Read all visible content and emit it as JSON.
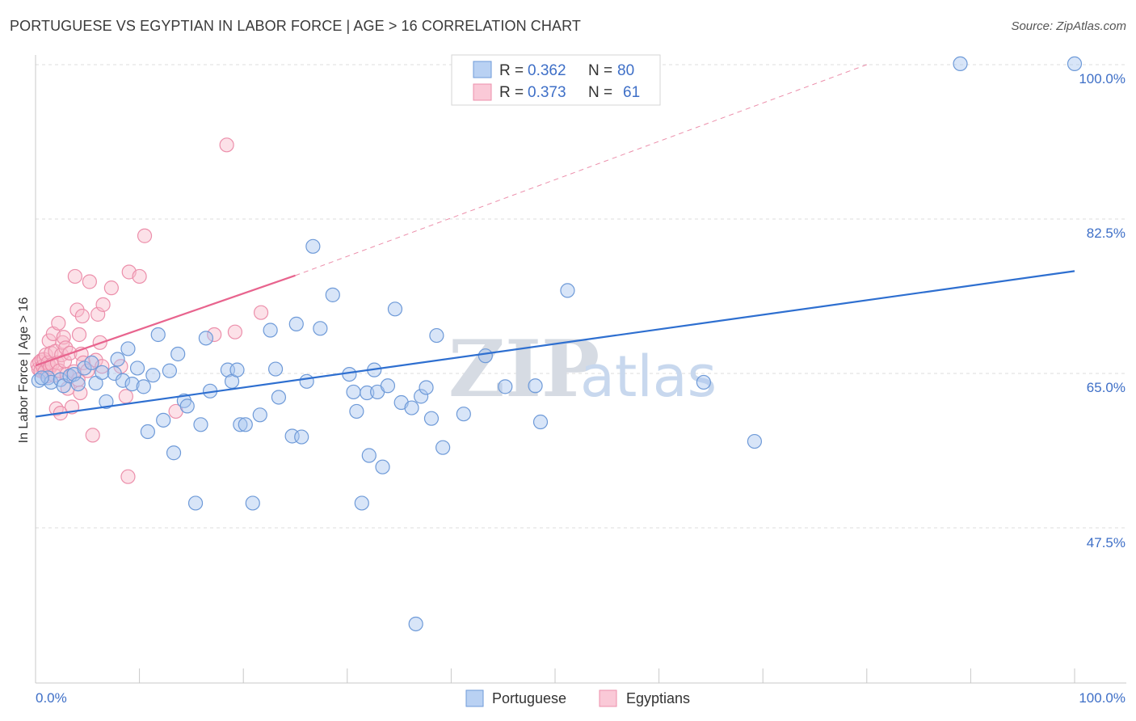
{
  "title": "PORTUGUESE VS EGYPTIAN IN LABOR FORCE | AGE > 16 CORRELATION CHART",
  "source": "Source: ZipAtlas.com",
  "watermark": {
    "zip": "ZIP",
    "atlas": "atlas"
  },
  "colors": {
    "blue": "#3e6fc7",
    "blue_line": "#2e6fd0",
    "blue_fill": "#a8c6f0",
    "pink": "#f48aa8",
    "pink_line": "#e8648e",
    "pink_fill": "#f9bccd"
  },
  "legend": {
    "rows": [
      {
        "r_label": "R = ",
        "r_value": "0.362",
        "n_label": "N = ",
        "n_value": "80"
      },
      {
        "r_label": "R = ",
        "r_value": "0.373",
        "n_label": "N = ",
        "n_value": "61"
      }
    ]
  },
  "bottom_legend": [
    "Portuguese",
    "Egyptians"
  ],
  "chart_data": {
    "type": "scatter",
    "title": "PORTUGUESE VS EGYPTIAN IN LABOR FORCE | AGE > 16 CORRELATION CHART",
    "xlabel": "",
    "ylabel": "In Labor Force | Age > 16",
    "xlim": [
      0,
      100
    ],
    "ylim": [
      30,
      103
    ],
    "x_tick_labels": [
      "0.0%",
      "100.0%"
    ],
    "y_tick_labels": [
      "100.0%",
      "82.5%",
      "65.0%",
      "47.5%"
    ],
    "y_ticks": [
      100,
      82.5,
      65,
      47.5
    ],
    "series": [
      {
        "name": "Portuguese",
        "r": 0.362,
        "n": 80,
        "trend": {
          "x": [
            0,
            100
          ],
          "y": [
            60.1,
            76.6
          ],
          "style": "solid"
        },
        "points": [
          [
            0.3,
            64.2
          ],
          [
            1.2,
            64.5
          ],
          [
            1.5,
            64.0
          ],
          [
            2.4,
            64.3
          ],
          [
            2.7,
            63.6
          ],
          [
            3.3,
            64.7
          ],
          [
            3.7,
            64.9
          ],
          [
            4.1,
            63.8
          ],
          [
            4.7,
            65.6
          ],
          [
            5.4,
            66.2
          ],
          [
            5.8,
            63.9
          ],
          [
            6.4,
            65.1
          ],
          [
            6.8,
            61.8
          ],
          [
            7.6,
            65.0
          ],
          [
            7.9,
            66.6
          ],
          [
            8.4,
            64.2
          ],
          [
            8.9,
            67.8
          ],
          [
            9.3,
            63.8
          ],
          [
            9.8,
            65.6
          ],
          [
            10.4,
            63.5
          ],
          [
            10.8,
            58.4
          ],
          [
            11.3,
            64.8
          ],
          [
            11.8,
            69.4
          ],
          [
            12.3,
            59.7
          ],
          [
            12.9,
            65.3
          ],
          [
            13.3,
            56.0
          ],
          [
            13.7,
            67.2
          ],
          [
            14.3,
            61.9
          ],
          [
            14.6,
            61.3
          ],
          [
            15.4,
            50.3
          ],
          [
            15.9,
            59.2
          ],
          [
            16.4,
            69.0
          ],
          [
            16.8,
            63.0
          ],
          [
            18.5,
            65.4
          ],
          [
            18.9,
            64.1
          ],
          [
            19.4,
            65.4
          ],
          [
            19.7,
            59.2
          ],
          [
            20.2,
            59.2
          ],
          [
            20.9,
            50.3
          ],
          [
            21.6,
            60.3
          ],
          [
            22.6,
            69.9
          ],
          [
            23.1,
            65.5
          ],
          [
            23.4,
            62.3
          ],
          [
            24.7,
            57.9
          ],
          [
            25.1,
            70.6
          ],
          [
            25.6,
            57.8
          ],
          [
            26.1,
            64.1
          ],
          [
            26.7,
            79.4
          ],
          [
            27.4,
            70.1
          ],
          [
            28.6,
            73.9
          ],
          [
            30.2,
            64.9
          ],
          [
            30.6,
            62.9
          ],
          [
            30.9,
            60.7
          ],
          [
            31.4,
            50.3
          ],
          [
            31.9,
            62.8
          ],
          [
            32.1,
            55.7
          ],
          [
            32.6,
            65.4
          ],
          [
            32.9,
            62.9
          ],
          [
            33.4,
            54.4
          ],
          [
            33.9,
            63.6
          ],
          [
            34.6,
            72.3
          ],
          [
            35.2,
            61.7
          ],
          [
            36.2,
            61.1
          ],
          [
            36.6,
            36.6
          ],
          [
            37.1,
            62.4
          ],
          [
            37.6,
            63.4
          ],
          [
            38.1,
            59.9
          ],
          [
            38.6,
            69.3
          ],
          [
            39.2,
            56.6
          ],
          [
            41.2,
            60.4
          ],
          [
            43.3,
            67.0
          ],
          [
            45.2,
            63.5
          ],
          [
            48.1,
            63.6
          ],
          [
            48.6,
            59.5
          ],
          [
            51.2,
            74.4
          ],
          [
            64.3,
            64.0
          ],
          [
            69.2,
            57.3
          ],
          [
            89.0,
            100.1
          ],
          [
            100.0,
            100.1
          ],
          [
            0.6,
            64.5
          ]
        ]
      },
      {
        "name": "Egyptians",
        "r": 0.373,
        "n": 61,
        "trend": {
          "x": [
            0,
            25
          ],
          "y": [
            65.9,
            76.1
          ],
          "style": "solid",
          "extended_to": [
            80,
            100
          ],
          "extended_style": "dashed"
        },
        "points": [
          [
            0.2,
            66.0
          ],
          [
            0.3,
            65.5
          ],
          [
            0.4,
            66.3
          ],
          [
            0.5,
            65.3
          ],
          [
            0.6,
            66.5
          ],
          [
            0.7,
            65.8
          ],
          [
            0.8,
            66.6
          ],
          [
            0.9,
            65.2
          ],
          [
            1.0,
            67.1
          ],
          [
            1.1,
            64.7
          ],
          [
            1.2,
            66.2
          ],
          [
            1.3,
            68.7
          ],
          [
            1.4,
            65.7
          ],
          [
            1.5,
            67.3
          ],
          [
            1.6,
            66.0
          ],
          [
            1.7,
            69.5
          ],
          [
            1.8,
            64.8
          ],
          [
            1.9,
            67.5
          ],
          [
            2.0,
            61.0
          ],
          [
            2.1,
            66.2
          ],
          [
            2.2,
            70.7
          ],
          [
            2.3,
            65.3
          ],
          [
            2.4,
            60.5
          ],
          [
            2.5,
            67.1
          ],
          [
            2.6,
            68.5
          ],
          [
            2.7,
            69.1
          ],
          [
            2.8,
            66.4
          ],
          [
            2.9,
            67.9
          ],
          [
            3.0,
            64.9
          ],
          [
            3.1,
            63.3
          ],
          [
            3.3,
            67.3
          ],
          [
            3.5,
            61.2
          ],
          [
            3.7,
            65.2
          ],
          [
            3.8,
            76.0
          ],
          [
            4.0,
            72.2
          ],
          [
            4.1,
            64.3
          ],
          [
            4.2,
            69.4
          ],
          [
            4.3,
            62.8
          ],
          [
            4.4,
            67.2
          ],
          [
            4.5,
            71.5
          ],
          [
            4.6,
            66.2
          ],
          [
            5.0,
            65.3
          ],
          [
            5.2,
            75.4
          ],
          [
            5.5,
            58.0
          ],
          [
            5.8,
            66.5
          ],
          [
            6.0,
            71.7
          ],
          [
            6.2,
            68.5
          ],
          [
            6.4,
            65.8
          ],
          [
            6.5,
            72.8
          ],
          [
            7.3,
            74.7
          ],
          [
            8.2,
            65.8
          ],
          [
            8.7,
            62.4
          ],
          [
            8.9,
            53.3
          ],
          [
            9.0,
            76.5
          ],
          [
            10.0,
            76.0
          ],
          [
            10.5,
            80.6
          ],
          [
            13.5,
            60.7
          ],
          [
            17.2,
            69.4
          ],
          [
            19.2,
            69.7
          ],
          [
            21.7,
            71.9
          ],
          [
            18.4,
            90.9
          ]
        ]
      }
    ]
  }
}
